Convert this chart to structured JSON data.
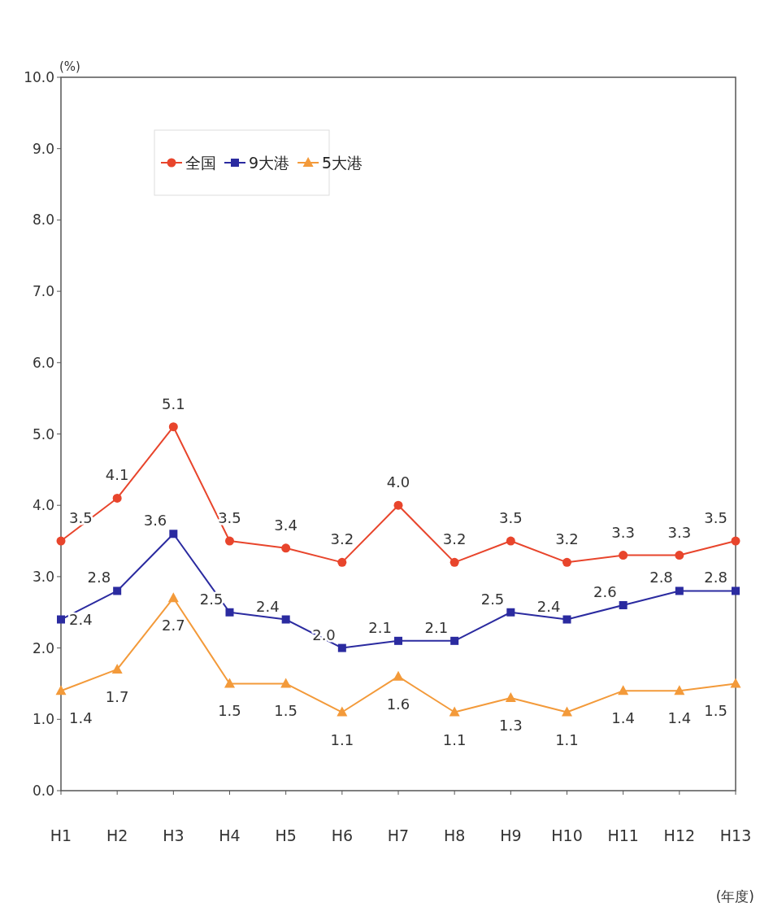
{
  "chart_data": {
    "type": "line",
    "ylabel": "(%)",
    "xlabel": "(年度)",
    "categories": [
      "H1",
      "H2",
      "H3",
      "H4",
      "H5",
      "H6",
      "H7",
      "H8",
      "H9",
      "H10",
      "H11",
      "H12",
      "H13"
    ],
    "series": [
      {
        "name": "全国",
        "color": "#e8452c",
        "marker": "circle",
        "values": [
          3.5,
          4.1,
          5.1,
          3.5,
          3.4,
          3.2,
          4.0,
          3.2,
          3.5,
          3.2,
          3.3,
          3.3,
          3.5
        ],
        "value_labels": [
          "3.5",
          "4.1",
          "5.1",
          "3.5",
          "3.4",
          "3.2",
          "4.0",
          "3.2",
          "3.5",
          "3.2",
          "3.3",
          "3.3",
          "3.5"
        ]
      },
      {
        "name": "9大港",
        "color": "#2b2ba0",
        "marker": "square",
        "values": [
          2.4,
          2.8,
          3.6,
          2.5,
          2.4,
          2.0,
          2.1,
          2.1,
          2.5,
          2.4,
          2.6,
          2.8,
          2.8
        ],
        "value_labels": [
          "2.4",
          "2.8",
          "3.6",
          "2.5",
          "2.4",
          "2.0",
          "2.1",
          "2.1",
          "2.5",
          "2.4",
          "2.6",
          "2.8",
          "2.8"
        ]
      },
      {
        "name": "5大港",
        "color": "#f39a3a",
        "marker": "triangle",
        "values": [
          1.4,
          1.7,
          2.7,
          1.5,
          1.5,
          1.1,
          1.6,
          1.1,
          1.3,
          1.1,
          1.4,
          1.4,
          1.5
        ],
        "value_labels": [
          "1.4",
          "1.7",
          "2.7",
          "1.5",
          "1.5",
          "1.1",
          "1.6",
          "1.1",
          "1.3",
          "1.1",
          "1.4",
          "1.4",
          "1.5"
        ]
      }
    ],
    "ylim": [
      0,
      10
    ],
    "yticks": [
      {
        "value": 0,
        "label": "0.0"
      },
      {
        "value": 1,
        "label": "1.0"
      },
      {
        "value": 2,
        "label": "2.0"
      },
      {
        "value": 3,
        "label": "3.0"
      },
      {
        "value": 4,
        "label": "4.0"
      },
      {
        "value": 5,
        "label": "5.0"
      },
      {
        "value": 6,
        "label": "6.0"
      },
      {
        "value": 7,
        "label": "7.0"
      },
      {
        "value": 8,
        "label": "8.0"
      },
      {
        "value": 9,
        "label": "9.0"
      },
      {
        "value": 10,
        "label": "10.0"
      }
    ],
    "legend": "top left",
    "grid": false,
    "line_style": "solid"
  }
}
